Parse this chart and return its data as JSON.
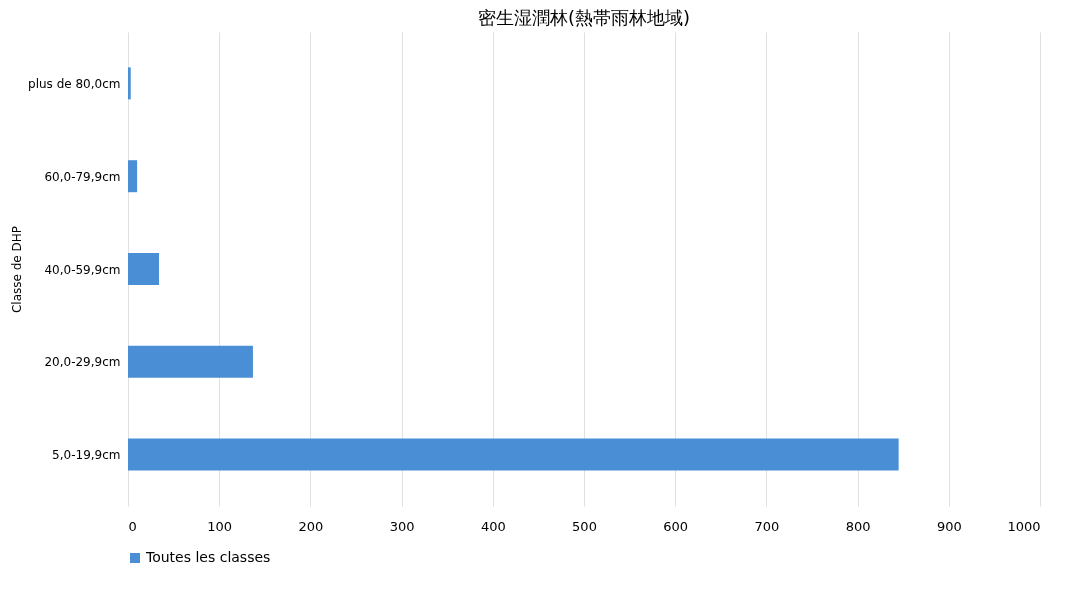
{
  "chart_data": {
    "type": "bar",
    "orientation": "horizontal",
    "title": "密生湿潤林(熱帯雨林地域)",
    "ylabel": "Classe de DHP",
    "categories": [
      "plus de 80,0cm",
      "60,0-79,9cm",
      "40,0-59,9cm",
      "20,0-29,9cm",
      "5,0-19,9cm"
    ],
    "series": [
      {
        "name": "Toutes les classes",
        "color": "#4a8fd6",
        "values": [
          3,
          10,
          34,
          137,
          845
        ]
      }
    ],
    "xlim": [
      0,
      1000
    ],
    "xticks": [
      0,
      100,
      200,
      300,
      400,
      500,
      600,
      700,
      800,
      900,
      1000
    ],
    "grid": "x",
    "legend": "bottom"
  }
}
